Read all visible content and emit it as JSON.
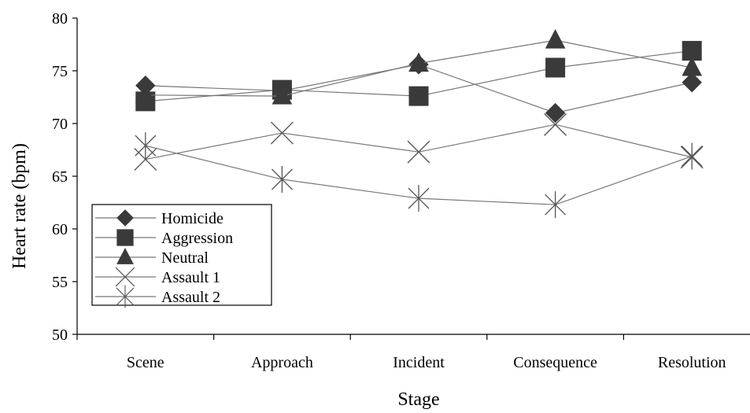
{
  "chart_data": {
    "type": "line",
    "title": "",
    "xlabel": "Stage",
    "ylabel": "Heart rate (bpm)",
    "categories": [
      "Scene",
      "Approach",
      "Incident",
      "Consequence",
      "Resolution"
    ],
    "ylim": [
      50,
      80
    ],
    "yticks": [
      50,
      55,
      60,
      65,
      70,
      75,
      80
    ],
    "grid": false,
    "legend_position": "bottom-left",
    "series": [
      {
        "name": "Homicide",
        "marker": "diamond",
        "values": [
          73.6,
          73.1,
          75.6,
          71.0,
          73.9
        ]
      },
      {
        "name": "Aggression",
        "marker": "square",
        "values": [
          72.1,
          73.2,
          72.6,
          75.3,
          76.9
        ]
      },
      {
        "name": "Neutral",
        "marker": "triangle",
        "values": [
          72.7,
          72.6,
          75.7,
          77.9,
          75.3
        ]
      },
      {
        "name": "Assault 1",
        "marker": "x",
        "values": [
          66.6,
          69.1,
          67.3,
          69.9,
          66.8
        ]
      },
      {
        "name": "Assault 2",
        "marker": "asterisk",
        "values": [
          67.9,
          64.7,
          62.9,
          62.3,
          66.9
        ]
      }
    ]
  }
}
